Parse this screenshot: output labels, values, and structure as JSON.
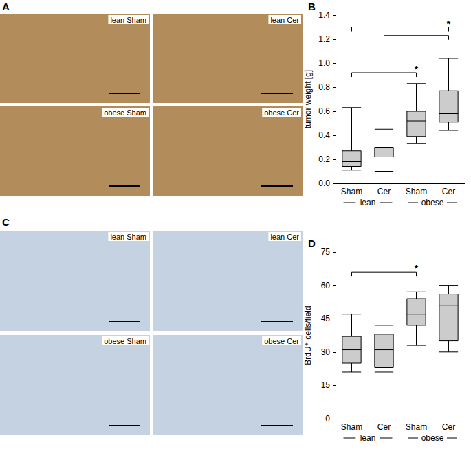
{
  "photo_panels": [
    {
      "panel": "A",
      "images": [
        "lean Sham",
        "lean Cer",
        "obese Sham",
        "obese Cer"
      ],
      "color": "#b38c5c"
    },
    {
      "panel": "C",
      "images": [
        "lean Sham",
        "lean Cer",
        "obese Sham",
        "obese Cer"
      ],
      "color": "#c4d2e2"
    }
  ],
  "chart_data": [
    {
      "type": "boxplot",
      "panel": "B",
      "y_label": "tumor weight [g]",
      "categories": [
        "Sham",
        "Cer",
        "Sham",
        "Cer"
      ],
      "groups": [
        {
          "label": "lean",
          "categories": [
            0,
            1
          ]
        },
        {
          "label": "obese",
          "categories": [
            2,
            3
          ]
        }
      ],
      "values": [
        [
          0.11,
          0.14,
          0.18,
          0.27,
          0.63
        ],
        [
          0.1,
          0.22,
          0.26,
          0.3,
          0.45
        ],
        [
          0.33,
          0.39,
          0.52,
          0.6,
          0.83
        ],
        [
          0.44,
          0.51,
          0.58,
          0.77,
          1.04
        ]
      ],
      "color": "#cccccc",
      "ylim": [
        0,
        1.4
      ],
      "yticks": [
        {
          "value": 0,
          "label": "0.0"
        },
        0.2,
        0.4,
        0.6,
        0.8,
        {
          "value": 1,
          "label": "1.0"
        },
        1.2,
        1.4
      ],
      "annotations": [
        {
          "from": 0,
          "to": 3,
          "y": 1.3,
          "label": "*"
        },
        {
          "from": 1,
          "to": 3,
          "y": 1.23
        },
        {
          "from": 0,
          "to": 2,
          "y": 0.92,
          "label": "*"
        }
      ]
    },
    {
      "type": "boxplot",
      "panel": "D",
      "y_label": "BrdU⁺ cells/field",
      "categories": [
        "Sham",
        "Cer",
        "Sham",
        "Cer"
      ],
      "groups": [
        {
          "label": "lean",
          "categories": [
            0,
            1
          ]
        },
        {
          "label": "obese",
          "categories": [
            2,
            3
          ]
        }
      ],
      "values": [
        [
          21,
          25,
          31,
          37,
          47
        ],
        [
          21,
          23,
          31,
          38,
          42
        ],
        [
          33,
          42,
          47,
          54,
          57
        ],
        [
          30,
          35,
          51,
          56,
          60
        ]
      ],
      "color": "#cccccc",
      "ylim": [
        0,
        75
      ],
      "yticks": [
        0,
        15,
        30,
        45,
        60,
        75
      ],
      "annotations": [
        {
          "from": 0,
          "to": 2,
          "y": 66,
          "label": "*"
        }
      ]
    }
  ]
}
